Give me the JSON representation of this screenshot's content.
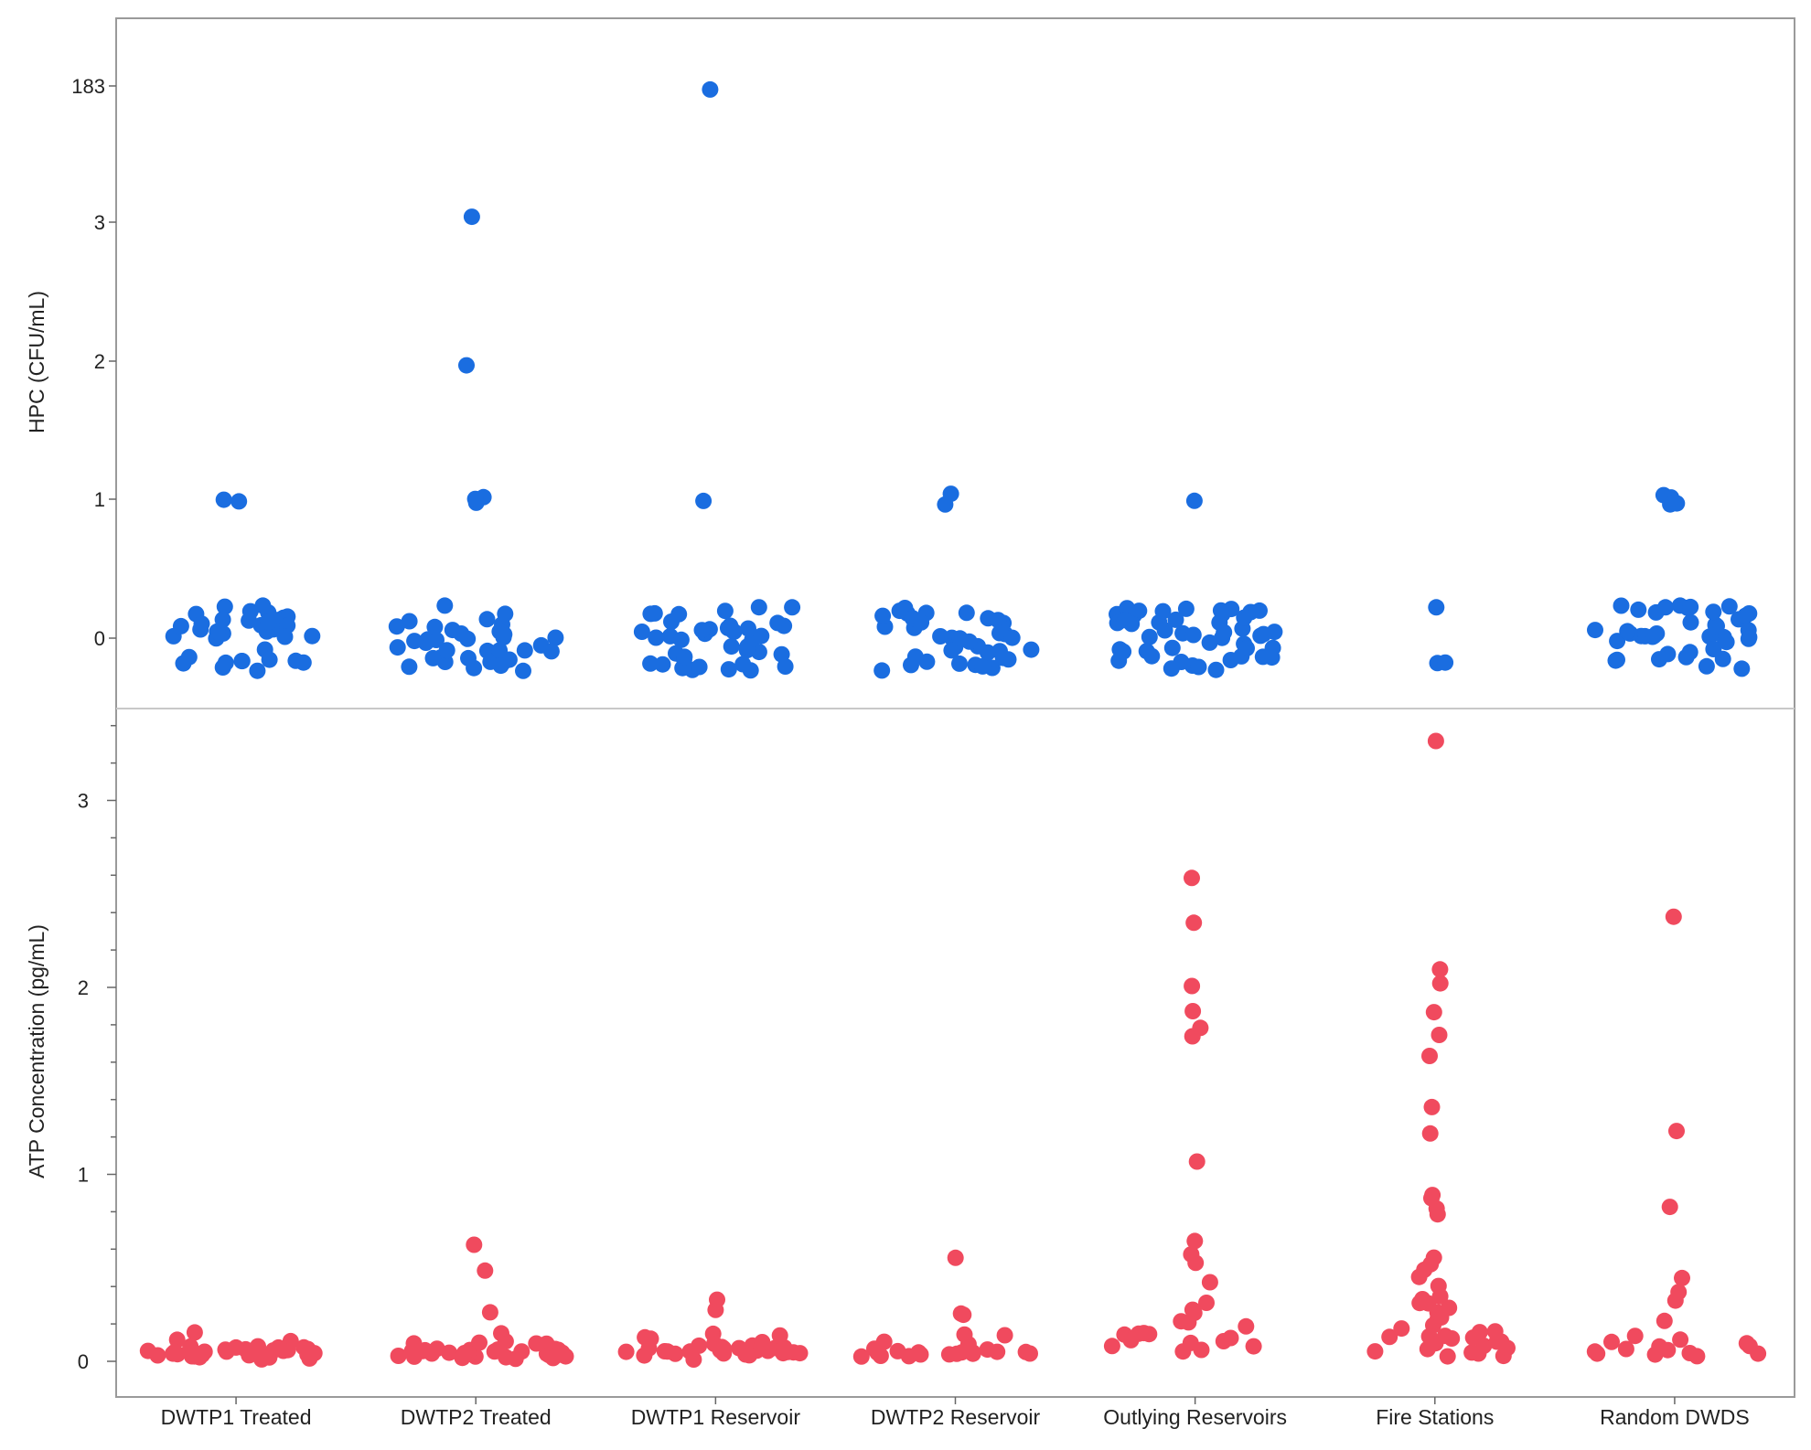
{
  "colors": {
    "hpc": "#1a6de0",
    "atp": "#f04a5e",
    "frame": "#9a9a9a",
    "divider": "#c8c8c8"
  },
  "chart_data": [
    {
      "type": "scatter",
      "panel": "top",
      "ylabel": "HPC (CFU/mL)",
      "y_ticks": [
        "0",
        "1",
        "2",
        "3",
        "183"
      ],
      "color": "#1a6de0",
      "categories": [
        "DWTP1 Treated",
        "DWTP2 Treated",
        "DWTP1 Reservoir",
        "DWTP2 Reservoir",
        "Outlying Reservoirs",
        "Fire Stations",
        "Random DWDS"
      ],
      "series": [
        {
          "category": "DWTP1 Treated",
          "values": [
            0,
            0,
            0,
            0,
            0,
            0,
            0,
            0,
            0,
            0,
            0,
            0,
            0,
            0,
            0,
            0,
            0,
            0,
            0,
            0,
            0,
            0,
            0,
            0,
            0,
            0,
            0,
            0,
            0,
            0,
            0,
            0,
            0,
            0,
            0,
            0,
            1,
            1
          ]
        },
        {
          "category": "DWTP2 Treated",
          "values": [
            0,
            0,
            0,
            0,
            0,
            0,
            0,
            0,
            0,
            0,
            0,
            0,
            0,
            0,
            0,
            0,
            0,
            0,
            0,
            0,
            0,
            0,
            0,
            0,
            0,
            0,
            0,
            0,
            0,
            0,
            0,
            0,
            0,
            0,
            0,
            0,
            1,
            1,
            1,
            2,
            3
          ]
        },
        {
          "category": "DWTP1 Reservoir",
          "values": [
            0,
            0,
            0,
            0,
            0,
            0,
            0,
            0,
            0,
            0,
            0,
            0,
            0,
            0,
            0,
            0,
            0,
            0,
            0,
            0,
            0,
            0,
            0,
            0,
            0,
            0,
            0,
            0,
            0,
            0,
            0,
            0,
            0,
            0,
            0,
            0,
            0,
            0,
            0,
            0,
            1,
            183
          ]
        },
        {
          "category": "DWTP2 Reservoir",
          "values": [
            0,
            0,
            0,
            0,
            0,
            0,
            0,
            0,
            0,
            0,
            0,
            0,
            0,
            0,
            0,
            0,
            0,
            0,
            0,
            0,
            0,
            0,
            0,
            0,
            0,
            0,
            0,
            0,
            0,
            0,
            0,
            0,
            0,
            0,
            0,
            0,
            1,
            1
          ]
        },
        {
          "category": "Outlying Reservoirs",
          "values": [
            0,
            0,
            0,
            0,
            0,
            0,
            0,
            0,
            0,
            0,
            0,
            0,
            0,
            0,
            0,
            0,
            0,
            0,
            0,
            0,
            0,
            0,
            0,
            0,
            0,
            0,
            0,
            0,
            0,
            0,
            0,
            0,
            0,
            0,
            0,
            0,
            0,
            0,
            0,
            0,
            0,
            0,
            0,
            0,
            0,
            0,
            0,
            0,
            1
          ]
        },
        {
          "category": "Fire Stations",
          "values": [
            0,
            0,
            0
          ]
        },
        {
          "category": "Random DWDS",
          "values": [
            0,
            0,
            0,
            0,
            0,
            0,
            0,
            0,
            0,
            0,
            0,
            0,
            0,
            0,
            0,
            0,
            0,
            0,
            0,
            0,
            0,
            0,
            0,
            0,
            0,
            0,
            0,
            0,
            0,
            0,
            0,
            0,
            0,
            0,
            0,
            0,
            0,
            0,
            0,
            0,
            1,
            1,
            1,
            1,
            1
          ]
        }
      ]
    },
    {
      "type": "scatter",
      "panel": "bottom",
      "ylabel": "ATP Concentration (pg/mL)",
      "xlabel": "",
      "y_ticks": [
        "0",
        "1",
        "2",
        "3"
      ],
      "ylim": [
        -0.2,
        3.5
      ],
      "color": "#f04a5e",
      "categories": [
        "DWTP1 Treated",
        "DWTP2 Treated",
        "DWTP1 Reservoir",
        "DWTP2 Reservoir",
        "Outlying Reservoirs",
        "Fire Stations",
        "Random DWDS"
      ],
      "series": [
        {
          "category": "DWTP1 Treated",
          "values": [
            0.04,
            0.05,
            0.03,
            0.06,
            0.04,
            0.08,
            0.05,
            0.03,
            0.1,
            0.04,
            0.07,
            0.02,
            0.05,
            0.12,
            0.06,
            0.03,
            0.04,
            0.09,
            0.05,
            0.04,
            0.06,
            0.03,
            0.05,
            0.04,
            0.15,
            0.07,
            0.05,
            0.03,
            0.04,
            0.06,
            0.02,
            0.05,
            0.04,
            0.03,
            0.08,
            0.05
          ]
        },
        {
          "category": "DWTP2 Treated",
          "values": [
            0.04,
            0.05,
            0.03,
            0.06,
            0.04,
            0.08,
            0.05,
            0.03,
            0.1,
            0.04,
            0.07,
            0.02,
            0.05,
            0.12,
            0.06,
            0.03,
            0.04,
            0.09,
            0.05,
            0.04,
            0.06,
            0.03,
            0.05,
            0.04,
            0.07,
            0.05,
            0.03,
            0.04,
            0.06,
            0.02,
            0.16,
            0.1,
            0.27,
            0.48,
            0.62
          ]
        },
        {
          "category": "DWTP1 Reservoir",
          "values": [
            0.05,
            0.06,
            0.04,
            0.07,
            0.05,
            0.09,
            0.06,
            0.04,
            0.11,
            0.05,
            0.08,
            0.03,
            0.06,
            0.13,
            0.07,
            0.04,
            0.05,
            0.1,
            0.06,
            0.05,
            0.07,
            0.04,
            0.06,
            0.05,
            0.08,
            0.06,
            0.04,
            0.05,
            0.07,
            0.0,
            0.09,
            0.12,
            0.14,
            0.28,
            0.32
          ]
        },
        {
          "category": "DWTP2 Reservoir",
          "values": [
            0.03,
            0.04,
            0.03,
            0.05,
            0.04,
            0.06,
            0.05,
            0.03,
            0.08,
            0.04,
            0.06,
            0.02,
            0.05,
            0.1,
            0.06,
            0.03,
            0.04,
            0.07,
            0.05,
            0.04,
            0.1,
            0.13,
            0.15,
            0.26,
            0.26,
            0.54
          ]
        },
        {
          "category": "Outlying Reservoirs",
          "values": [
            0.05,
            0.07,
            0.09,
            0.11,
            0.13,
            0.15,
            0.06,
            0.08,
            0.1,
            0.12,
            0.14,
            0.16,
            0.18,
            0.2,
            0.22,
            0.25,
            0.28,
            0.31,
            0.42,
            0.52,
            0.57,
            0.63,
            1.08,
            1.74,
            1.78,
            1.88,
            2.01,
            2.35,
            2.59
          ]
        },
        {
          "category": "Fire Stations",
          "values": [
            0.02,
            0.04,
            0.06,
            0.08,
            0.1,
            0.12,
            0.14,
            0.16,
            0.18,
            0.2,
            0.22,
            0.24,
            0.26,
            0.28,
            0.3,
            0.32,
            0.34,
            0.36,
            0.4,
            0.44,
            0.48,
            0.52,
            0.55,
            0.78,
            0.82,
            0.86,
            0.89,
            1.23,
            1.37,
            1.62,
            1.75,
            1.86,
            2.03,
            2.11,
            3.33,
            0.05,
            0.07,
            0.09,
            0.11,
            0.13,
            0.15,
            0.03,
            0.06,
            0.1,
            0.13
          ]
        },
        {
          "category": "Random DWDS",
          "values": [
            0.03,
            0.05,
            0.07,
            0.04,
            0.06,
            0.08,
            0.1,
            0.05,
            0.07,
            0.12,
            0.04,
            0.06,
            0.09,
            0.15,
            0.22,
            0.33,
            0.37,
            0.45,
            0.83,
            1.23,
            2.39
          ]
        }
      ]
    }
  ]
}
